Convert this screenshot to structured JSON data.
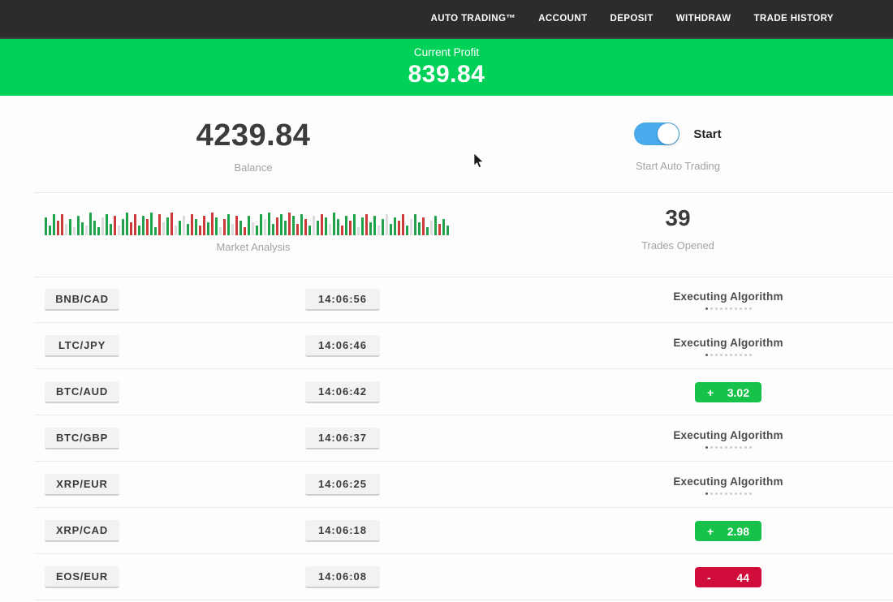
{
  "nav": {
    "items": [
      {
        "id": "auto-trading",
        "label": "AUTO TRADING™"
      },
      {
        "id": "account",
        "label": "ACCOUNT"
      },
      {
        "id": "deposit",
        "label": "DEPOSIT"
      },
      {
        "id": "withdraw",
        "label": "WITHDRAW"
      },
      {
        "id": "trade-history",
        "label": "TRADE HISTORY"
      }
    ]
  },
  "profit_banner": {
    "label": "Current Profit",
    "value": "839.84"
  },
  "stats": {
    "balance": {
      "value": "4239.84",
      "label": "Balance"
    },
    "auto_trading": {
      "toggle_label": "Start",
      "label": "Start Auto Trading",
      "enabled": true
    },
    "market_analysis": {
      "label": "Market Analysis"
    },
    "trades_opened": {
      "value": "39",
      "label": "Trades Opened"
    }
  },
  "chart_data": {
    "type": "bar",
    "title": "Market Analysis",
    "xlabel": "",
    "ylabel": "",
    "axes_visible": false,
    "palette": {
      "g": "#1fa24a",
      "r": "#cb3a38",
      "l": "#dcdcdc"
    },
    "bars": [
      [
        "g",
        22
      ],
      [
        "g",
        12
      ],
      [
        "g",
        26
      ],
      [
        "r",
        18
      ],
      [
        "r",
        26
      ],
      [
        "l",
        14
      ],
      [
        "g",
        20
      ],
      [
        "l",
        10
      ],
      [
        "g",
        24
      ],
      [
        "g",
        16
      ],
      [
        "l",
        12
      ],
      [
        "g",
        28
      ],
      [
        "g",
        18
      ],
      [
        "g",
        10
      ],
      [
        "l",
        22
      ],
      [
        "g",
        26
      ],
      [
        "g",
        14
      ],
      [
        "r",
        24
      ],
      [
        "l",
        12
      ],
      [
        "g",
        20
      ],
      [
        "g",
        28
      ],
      [
        "r",
        16
      ],
      [
        "r",
        26
      ],
      [
        "g",
        12
      ],
      [
        "g",
        24
      ],
      [
        "r",
        20
      ],
      [
        "g",
        28
      ],
      [
        "g",
        10
      ],
      [
        "r",
        26
      ],
      [
        "l",
        16
      ],
      [
        "g",
        22
      ],
      [
        "r",
        28
      ],
      [
        "l",
        12
      ],
      [
        "g",
        18
      ],
      [
        "l",
        24
      ],
      [
        "g",
        14
      ],
      [
        "r",
        26
      ],
      [
        "g",
        20
      ],
      [
        "r",
        12
      ],
      [
        "r",
        24
      ],
      [
        "g",
        16
      ],
      [
        "r",
        28
      ],
      [
        "g",
        22
      ],
      [
        "l",
        10
      ],
      [
        "r",
        20
      ],
      [
        "g",
        26
      ],
      [
        "l",
        14
      ],
      [
        "r",
        24
      ],
      [
        "g",
        18
      ],
      [
        "r",
        10
      ],
      [
        "g",
        24
      ],
      [
        "l",
        16
      ],
      [
        "g",
        12
      ],
      [
        "g",
        26
      ],
      [
        "l",
        20
      ],
      [
        "g",
        28
      ],
      [
        "g",
        14
      ],
      [
        "r",
        22
      ],
      [
        "g",
        26
      ],
      [
        "g",
        18
      ],
      [
        "r",
        28
      ],
      [
        "g",
        24
      ],
      [
        "r",
        14
      ],
      [
        "g",
        26
      ],
      [
        "r",
        20
      ],
      [
        "g",
        12
      ],
      [
        "l",
        24
      ],
      [
        "g",
        18
      ],
      [
        "r",
        26
      ],
      [
        "g",
        22
      ],
      [
        "l",
        14
      ],
      [
        "g",
        28
      ],
      [
        "g",
        20
      ],
      [
        "r",
        12
      ],
      [
        "g",
        24
      ],
      [
        "r",
        18
      ],
      [
        "g",
        26
      ],
      [
        "l",
        10
      ],
      [
        "g",
        22
      ],
      [
        "r",
        26
      ],
      [
        "g",
        16
      ],
      [
        "g",
        24
      ],
      [
        "l",
        12
      ],
      [
        "g",
        20
      ],
      [
        "l",
        26
      ],
      [
        "g",
        14
      ],
      [
        "g",
        22
      ],
      [
        "r",
        18
      ],
      [
        "r",
        26
      ],
      [
        "g",
        12
      ],
      [
        "l",
        20
      ],
      [
        "g",
        26
      ],
      [
        "g",
        16
      ],
      [
        "r",
        22
      ],
      [
        "g",
        10
      ],
      [
        "l",
        18
      ],
      [
        "g",
        24
      ],
      [
        "r",
        14
      ],
      [
        "g",
        20
      ],
      [
        "g",
        12
      ]
    ]
  },
  "trades": [
    {
      "pair": "BNB/CAD",
      "time": "14:06:56",
      "status": "executing",
      "status_label": "Executing Algorithm"
    },
    {
      "pair": "LTC/JPY",
      "time": "14:06:46",
      "status": "executing",
      "status_label": "Executing Algorithm"
    },
    {
      "pair": "BTC/AUD",
      "time": "14:06:42",
      "status": "profit",
      "sign": "+",
      "result": "3.02"
    },
    {
      "pair": "BTC/GBP",
      "time": "14:06:37",
      "status": "executing",
      "status_label": "Executing Algorithm"
    },
    {
      "pair": "XRP/EUR",
      "time": "14:06:25",
      "status": "executing",
      "status_label": "Executing Algorithm"
    },
    {
      "pair": "XRP/CAD",
      "time": "14:06:18",
      "status": "profit",
      "sign": "+",
      "result": "2.98"
    },
    {
      "pair": "EOS/EUR",
      "time": "14:06:08",
      "status": "loss",
      "sign": "-",
      "result": "44"
    }
  ],
  "colors": {
    "nav_bg": "#2d2c2c",
    "banner_green": "#00d158",
    "profit_green": "#17c24b",
    "loss_red": "#d00d3a",
    "toggle_blue": "#49aaec"
  },
  "status_dots_count": 10
}
